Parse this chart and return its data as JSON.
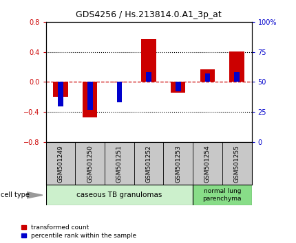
{
  "title": "GDS4256 / Hs.213814.0.A1_3p_at",
  "samples": [
    "GSM501249",
    "GSM501250",
    "GSM501251",
    "GSM501252",
    "GSM501253",
    "GSM501254",
    "GSM501255"
  ],
  "transformed_count": [
    -0.2,
    -0.47,
    -0.005,
    0.57,
    -0.14,
    0.17,
    0.41
  ],
  "percentile_rank": [
    30,
    27,
    33,
    58,
    42,
    57,
    58
  ],
  "ylim_left": [
    -0.8,
    0.8
  ],
  "ylim_right": [
    0,
    100
  ],
  "yticks_left": [
    -0.8,
    -0.4,
    0.0,
    0.4,
    0.8
  ],
  "yticks_right": [
    0,
    25,
    50,
    75,
    100
  ],
  "ytick_labels_right": [
    "0",
    "25",
    "50",
    "75",
    "100%"
  ],
  "bar_color_red": "#cc0000",
  "bar_color_blue": "#0000cc",
  "dashed_line_color": "#cc0000",
  "dotted_line_color": "#000000",
  "bg_color": "#ffffff",
  "plot_bg": "#ffffff",
  "group1_label": "caseous TB granulomas",
  "group2_label": "normal lung\nparenchyma",
  "group1_color": "#ccf0cc",
  "group2_color": "#88dd88",
  "cell_type_label": "cell type",
  "legend_red_label": "transformed count",
  "legend_blue_label": "percentile rank within the sample",
  "bar_width": 0.5,
  "blue_bar_width": 0.18,
  "label_row_color": "#c8c8c8",
  "label_row_border": "#888888"
}
